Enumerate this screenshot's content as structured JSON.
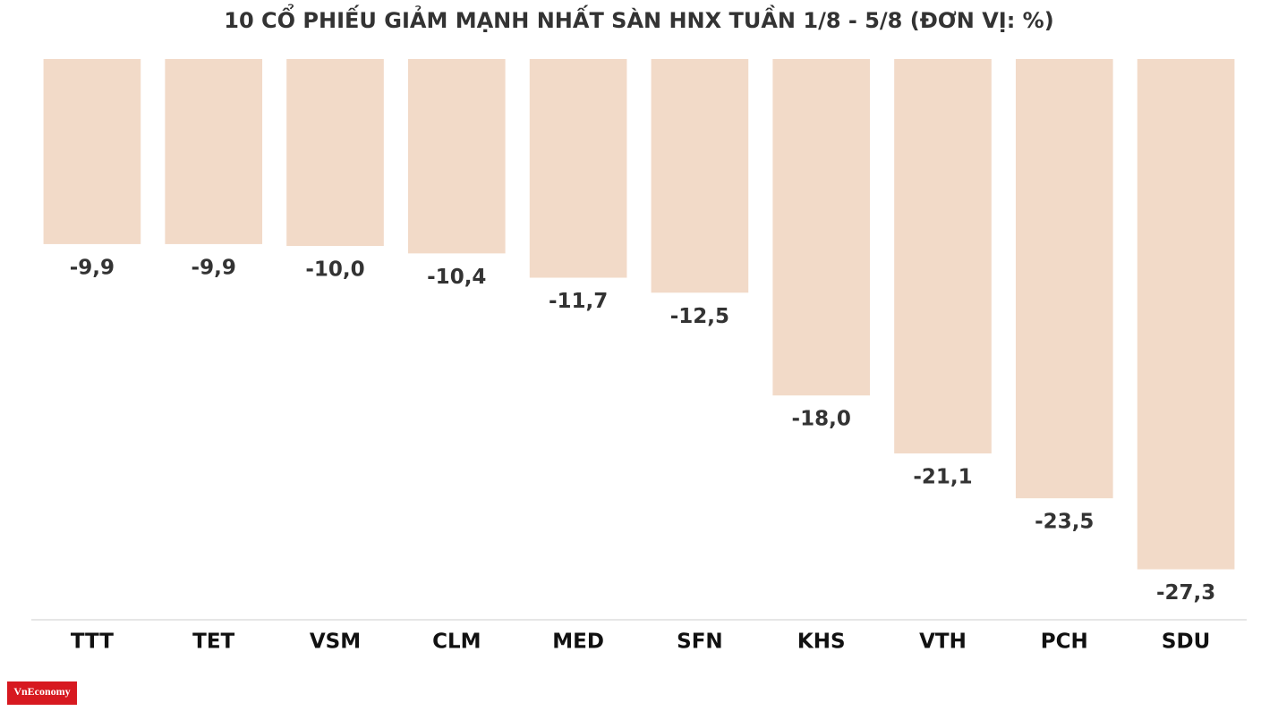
{
  "chart_data": {
    "type": "bar",
    "title": "10 CỔ PHIẾU GIẢM MẠNH NHẤT SÀN HNX TUẦN 1/8 - 5/8 (ĐƠN VỊ: %)",
    "categories": [
      "TTT",
      "TET",
      "VSM",
      "CLM",
      "MED",
      "SFN",
      "KHS",
      "VTH",
      "PCH",
      "SDU"
    ],
    "values": [
      -9.9,
      -9.9,
      -10.0,
      -10.4,
      -11.7,
      -12.5,
      -18.0,
      -21.1,
      -23.5,
      -27.3
    ],
    "value_labels": [
      "-9,9",
      "-9,9",
      "-10,0",
      "-10,4",
      "-11,7",
      "-12,5",
      "-18,0",
      "-21,1",
      "-23,5",
      "-27,3"
    ],
    "color": "#f2dac8",
    "ylim": [
      -30,
      0
    ],
    "logo": "VnEconomy"
  }
}
